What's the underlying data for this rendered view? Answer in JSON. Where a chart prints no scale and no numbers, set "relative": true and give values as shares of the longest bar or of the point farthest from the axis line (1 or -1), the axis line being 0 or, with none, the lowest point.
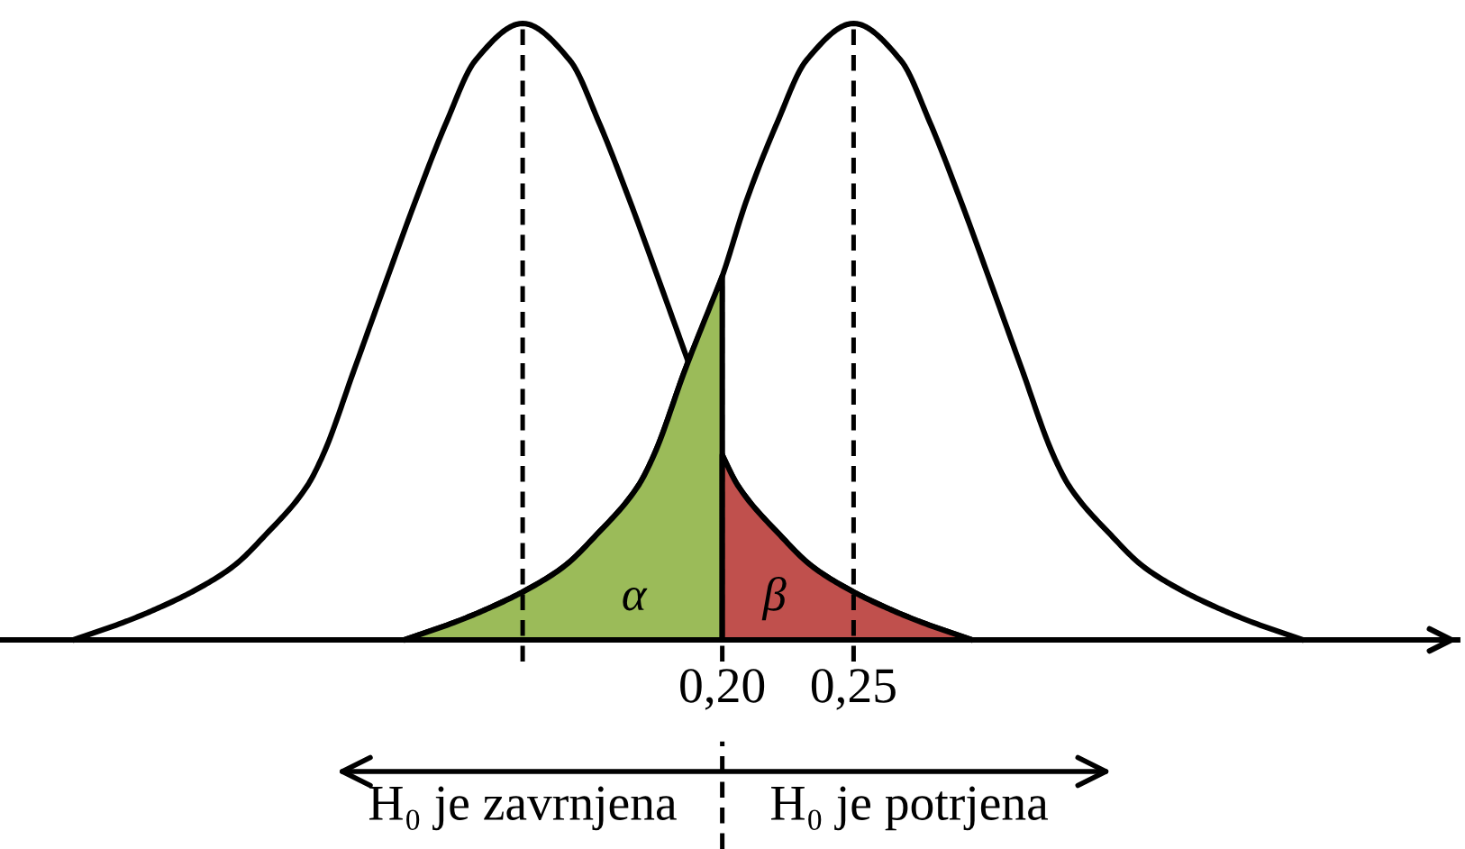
{
  "chart_data": {
    "type": "line",
    "relative": true,
    "xlim": [
      -0.075,
      0.48
    ],
    "xticks": [
      {
        "value": 0.2,
        "label": "0,20"
      },
      {
        "value": 0.25,
        "label": "0,25"
      }
    ],
    "series": [
      {
        "type": "area",
        "color": "#9bbb59",
        "x": [
          0.079,
          0.099,
          0.113,
          0.125,
          0.14,
          0.152,
          0.168,
          0.174,
          0.186,
          0.2
        ],
        "values": [
          0,
          0.03,
          0.055,
          0.08,
          0.12,
          0.17,
          0.25,
          0.3,
          0.44,
          0.59
        ]
      },
      {
        "type": "area",
        "color": "#c0504d",
        "x": [
          0.2,
          0.206,
          0.222,
          0.234,
          0.249,
          0.261,
          0.275,
          0.295
        ],
        "values": [
          0.3,
          0.25,
          0.17,
          0.12,
          0.08,
          0.055,
          0.03,
          0
        ]
      },
      {
        "color": "#000000",
        "x": [
          -0.047,
          -0.027,
          -0.013,
          -0.001,
          0.014,
          0.026,
          0.042,
          0.048,
          0.06,
          0.071,
          0.083,
          0.095,
          0.106,
          0.124,
          0.142,
          0.153,
          0.165,
          0.177,
          0.188,
          0.2,
          0.206,
          0.222,
          0.234,
          0.249,
          0.261,
          0.275,
          0.295
        ],
        "values": [
          0,
          0.03,
          0.055,
          0.08,
          0.12,
          0.17,
          0.25,
          0.3,
          0.44,
          0.57,
          0.71,
          0.84,
          0.94,
          1,
          0.94,
          0.84,
          0.71,
          0.57,
          0.44,
          0.3,
          0.25,
          0.17,
          0.12,
          0.08,
          0.055,
          0.03,
          0
        ]
      },
      {
        "color": "#000000",
        "x": [
          0.079,
          0.099,
          0.113,
          0.125,
          0.14,
          0.152,
          0.168,
          0.174,
          0.186,
          0.2,
          0.209,
          0.221,
          0.232,
          0.25,
          0.268,
          0.279,
          0.291,
          0.303,
          0.314,
          0.326,
          0.332,
          0.348,
          0.36,
          0.375,
          0.387,
          0.401,
          0.421
        ],
        "values": [
          0,
          0.03,
          0.055,
          0.08,
          0.12,
          0.17,
          0.25,
          0.3,
          0.44,
          0.59,
          0.71,
          0.84,
          0.94,
          1,
          0.94,
          0.84,
          0.71,
          0.57,
          0.44,
          0.3,
          0.25,
          0.17,
          0.12,
          0.08,
          0.055,
          0.03,
          0
        ]
      }
    ],
    "ref_lines": [
      {
        "axis": "x",
        "value": 0.124,
        "color": "#000000",
        "line_style": "dashed"
      },
      {
        "axis": "x",
        "value": 0.25,
        "color": "#000000",
        "line_style": "dashed"
      },
      {
        "axis": "x",
        "value": 0.2,
        "color": "#000000",
        "line_style": "dashed"
      }
    ],
    "annotations": [
      "α",
      "β",
      "H₀ je zavrnjena",
      "H₀ je potrjena"
    ]
  }
}
